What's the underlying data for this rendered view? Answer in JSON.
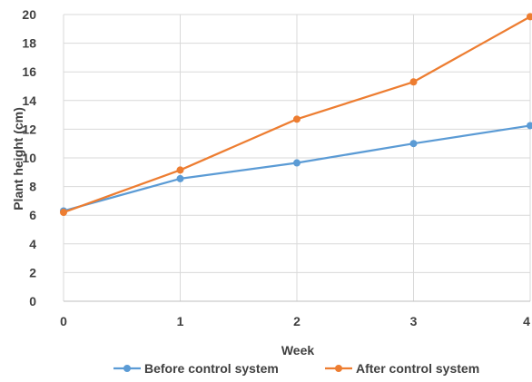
{
  "chart_data": {
    "type": "line",
    "x": [
      0,
      1,
      2,
      3,
      4
    ],
    "series": [
      {
        "name": "Before control system",
        "color": "#5B9BD5",
        "values": [
          6.3,
          8.55,
          9.65,
          11.0,
          12.25
        ]
      },
      {
        "name": "After control system",
        "color": "#ED7D31",
        "values": [
          6.2,
          9.15,
          12.7,
          15.3,
          19.85
        ]
      }
    ],
    "title": "",
    "xlabel": "Week",
    "ylabel": "Plant height (cm)",
    "xlim": [
      0,
      4
    ],
    "ylim": [
      0,
      20
    ],
    "x_ticks": [
      "0",
      "1",
      "2",
      "3",
      "4"
    ],
    "y_ticks": [
      "0",
      "2",
      "4",
      "6",
      "8",
      "10",
      "12",
      "14",
      "16",
      "18",
      "20"
    ],
    "grid": true,
    "legend_position": "bottom"
  }
}
